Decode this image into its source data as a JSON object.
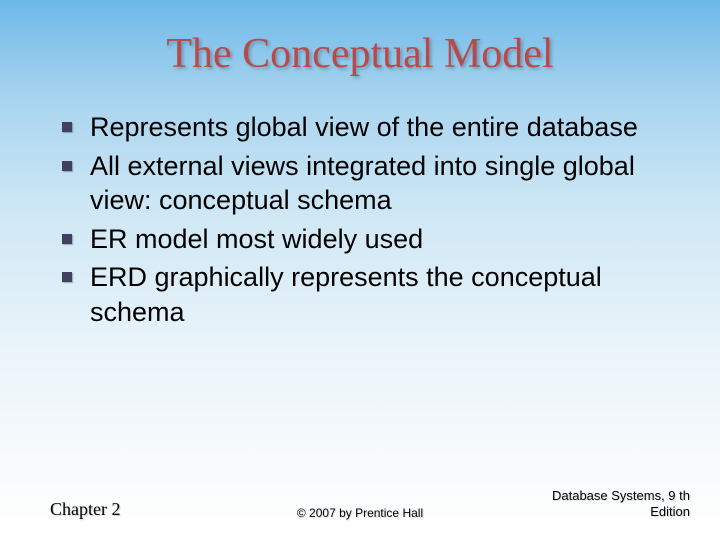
{
  "title": "The Conceptual Model",
  "bullets": [
    "Represents global view of the entire database",
    "All external views integrated into single global view: conceptual schema",
    "ER model most widely used",
    "ERD graphically represents the conceptual schema"
  ],
  "footer": {
    "left": "Chapter 2",
    "center": "© 2007 by Prentice Hall",
    "right_line1": "Database Systems, 9 th",
    "right_line2": "Edition"
  },
  "colors": {
    "title_color": "#b84a4a",
    "bullet_marker": "#404060",
    "bg_top": "#6db8e8",
    "bg_bottom": "#ffffff"
  }
}
